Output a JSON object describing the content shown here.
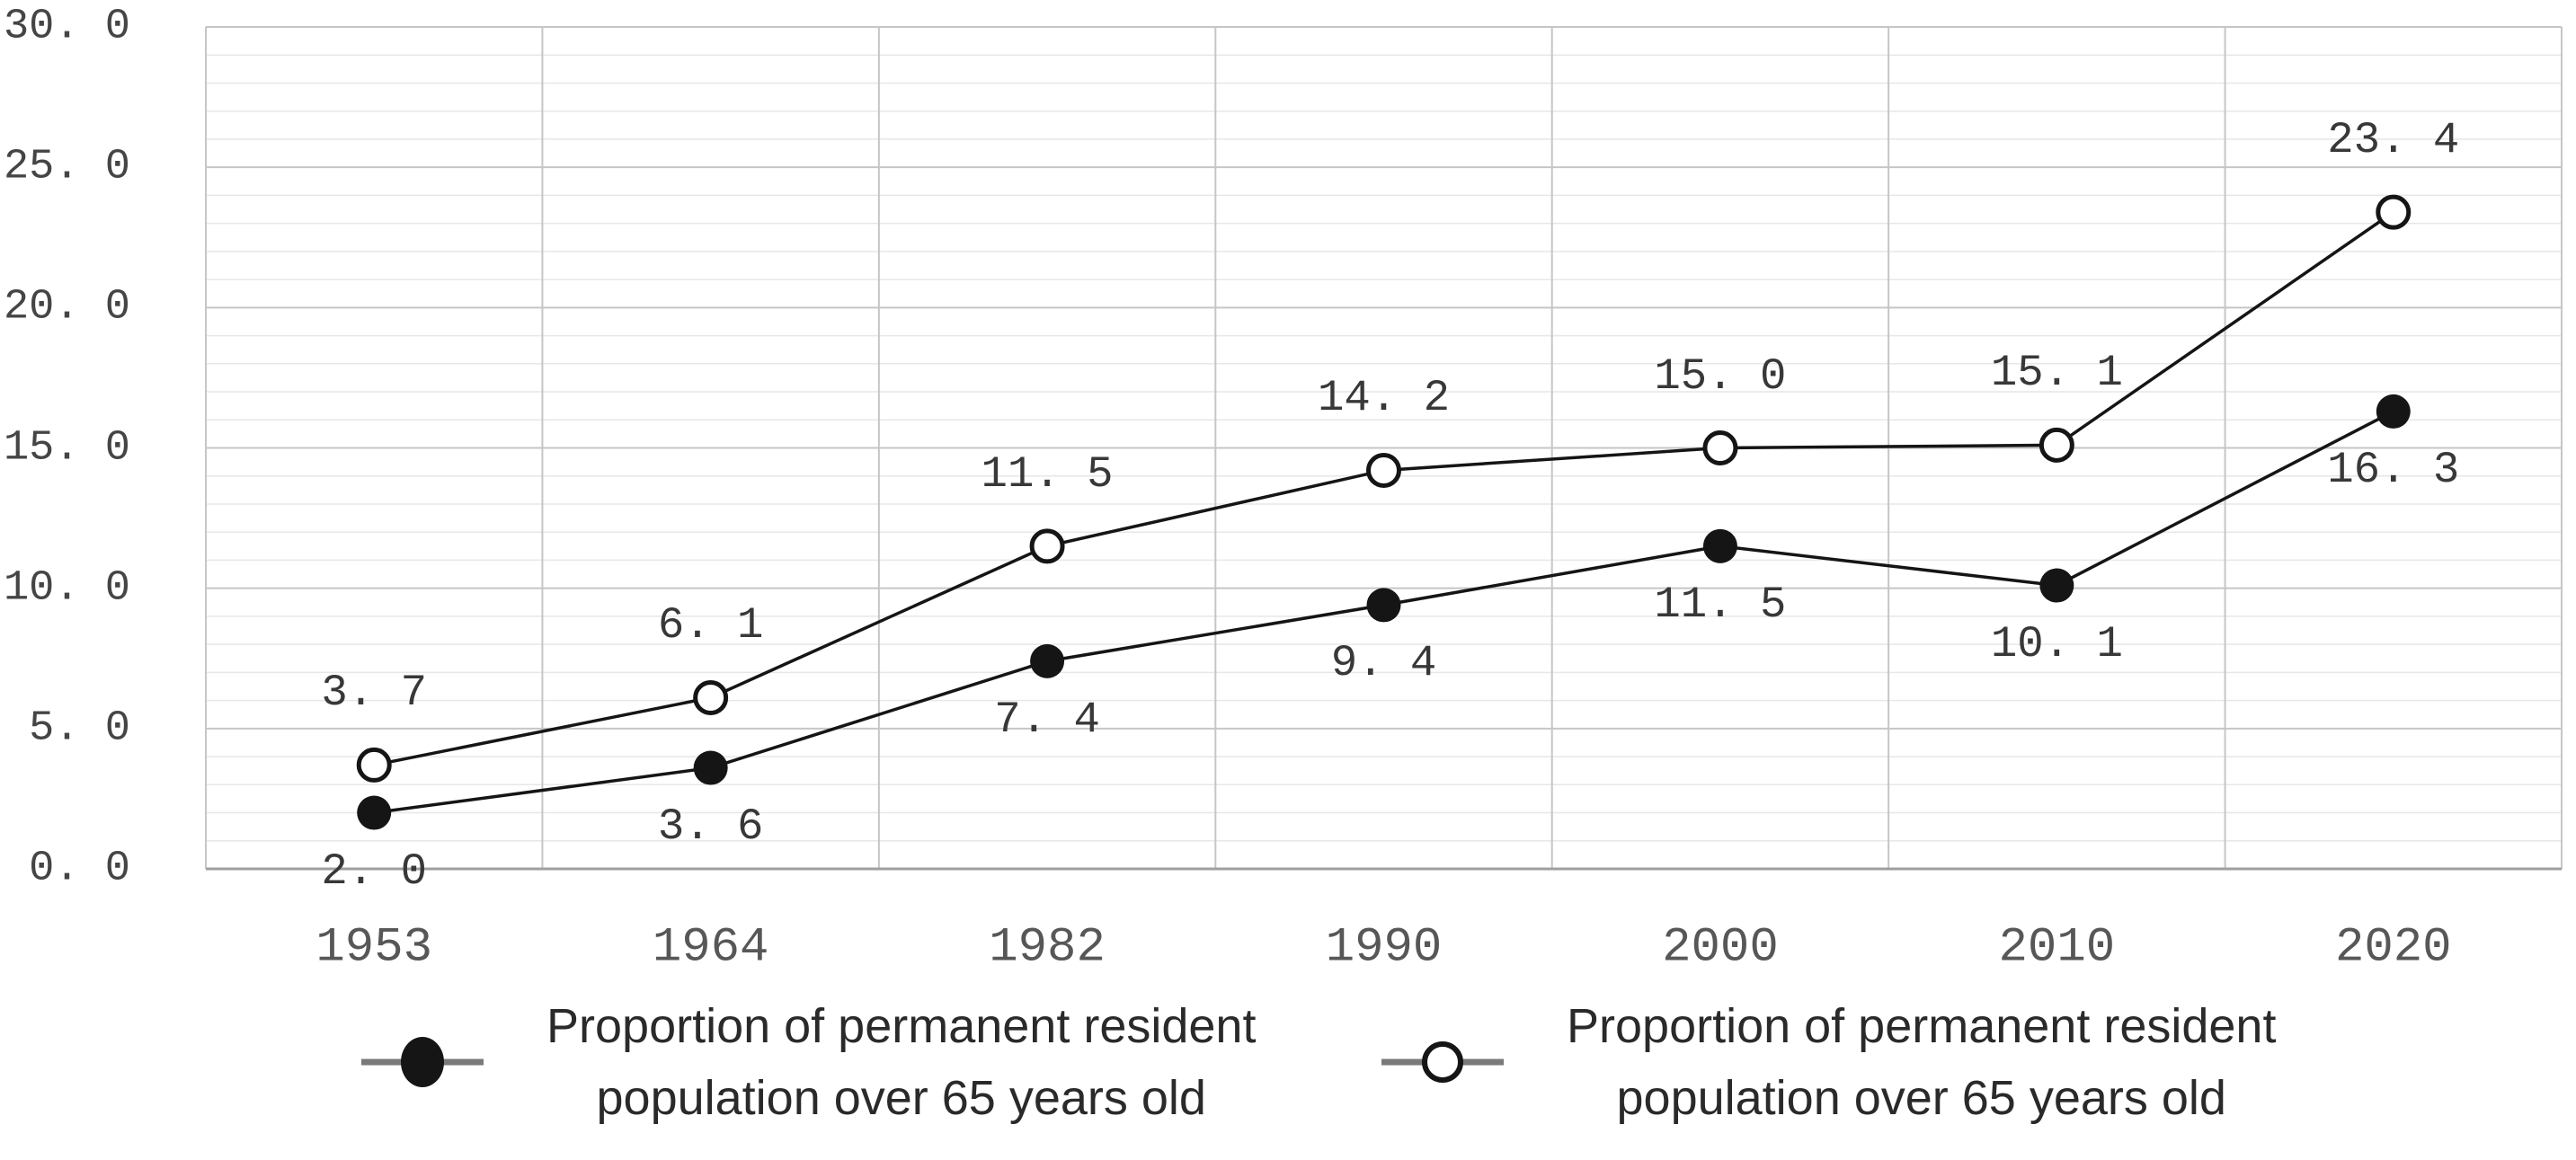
{
  "chart_data": {
    "type": "line",
    "title": "",
    "xlabel": "",
    "ylabel": "",
    "categories": [
      "1953",
      "1964",
      "1982",
      "1990",
      "2000",
      "2010",
      "2020"
    ],
    "series": [
      {
        "name": "Proportion of permanent resident population over 65 years old",
        "marker": "filled-circle",
        "label_position": "below",
        "values": [
          2.0,
          3.6,
          7.4,
          9.4,
          11.5,
          10.1,
          16.3
        ],
        "point_labels": [
          "2. 0",
          "3. 6",
          "7. 4",
          "9. 4",
          "11. 5",
          "10. 1",
          "16. 3"
        ]
      },
      {
        "name": "Proportion of permanent resident population over 65 years old",
        "marker": "open-circle",
        "label_position": "above",
        "values": [
          3.7,
          6.1,
          11.5,
          14.2,
          15.0,
          15.1,
          23.4
        ],
        "point_labels": [
          "3. 7",
          "6. 1",
          "11. 5",
          "14. 2",
          "15. 0",
          "15. 1",
          "23. 4"
        ]
      }
    ],
    "y_axis": {
      "min": 0,
      "max": 30,
      "major_step": 5,
      "minor_step": 1,
      "tick_values": [
        0,
        5,
        10,
        15,
        20,
        25,
        30
      ],
      "tick_labels": [
        "0. 0",
        "5. 0",
        "10. 0",
        "15. 0",
        "20. 0",
        "25. 0",
        "30. 0"
      ]
    },
    "grid": {
      "horizontal_minor": true,
      "horizontal_major": true,
      "vertical": true
    },
    "legend_position": "bottom"
  },
  "legend": {
    "items": [
      {
        "marker": "filled-circle",
        "line1": "Proportion of permanent resident",
        "line2": "population over 65 years old"
      },
      {
        "marker": "open-circle",
        "line1": "Proportion of permanent resident",
        "line2": "population over 65 years old"
      }
    ]
  },
  "colors": {
    "background": "#ffffff",
    "series_line": "#151515",
    "minor_grid": "#e7e7e7",
    "major_grid": "#c6c6c6",
    "axis_line": "#9f9f9f",
    "tick_text": "#454545",
    "year_text": "#575757",
    "data_label_text": "#383838",
    "legend_text": "#2a2a2a",
    "legend_line": "#7a7a7a"
  }
}
